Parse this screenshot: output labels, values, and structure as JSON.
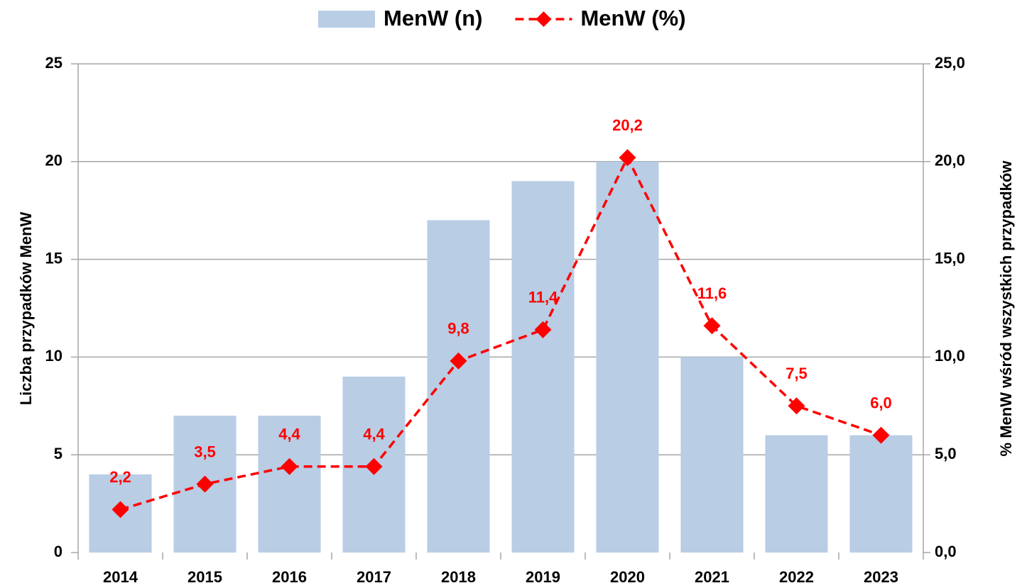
{
  "chart_data": {
    "type": "bar",
    "categories": [
      "2014",
      "2015",
      "2016",
      "2017",
      "2018",
      "2019",
      "2020",
      "2021",
      "2022",
      "2023"
    ],
    "series": [
      {
        "name": "MenW (n)",
        "type": "bar",
        "color": "#b9cde5",
        "values": [
          4,
          7,
          7,
          9,
          17,
          19,
          20,
          10,
          6,
          6
        ]
      },
      {
        "name": "MenW (%)",
        "type": "line",
        "color": "#ff0000",
        "axis": "y2",
        "values": [
          2.2,
          3.5,
          4.4,
          4.4,
          9.8,
          11.4,
          20.2,
          11.6,
          7.5,
          6.0
        ],
        "value_labels": [
          "2,2",
          "3,5",
          "4,4",
          "4,4",
          "9,8",
          "11,4",
          "20,2",
          "11,6",
          "7,5",
          "6,0"
        ]
      }
    ],
    "y_label": "Liczba przypadków MenW",
    "y2_label": "% MenW wśród wszystkich przypadków",
    "ylim": [
      0,
      25
    ],
    "yticks": [
      0,
      5,
      10,
      15,
      20,
      25
    ],
    "y2lim": [
      0,
      25
    ],
    "y2ticks": [
      {
        "value": 0,
        "label": "0,0"
      },
      {
        "value": 5,
        "label": "5,0"
      },
      {
        "value": 10,
        "label": "10,0"
      },
      {
        "value": 15,
        "label": "15,0"
      },
      {
        "value": 20,
        "label": "20,0"
      },
      {
        "value": 25,
        "label": "25,0"
      }
    ],
    "grid": true,
    "legend": "top"
  }
}
